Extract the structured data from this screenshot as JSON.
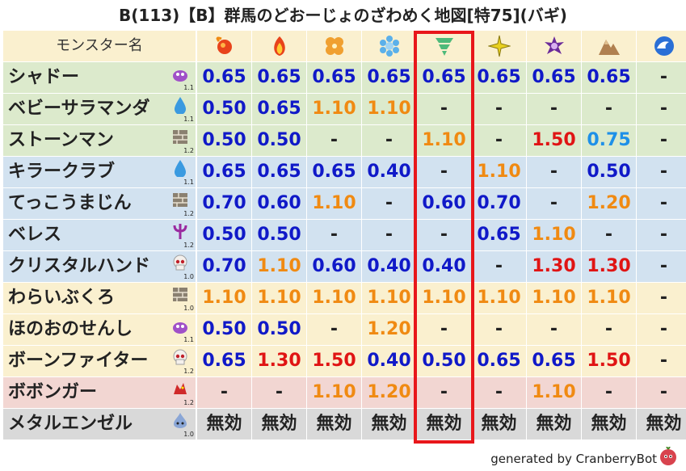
{
  "title": "B(113)【B】群馬のどおーじょのざわめく地図[特75](バギ)",
  "header_label": "モンスター名",
  "footer_text": "generated by CranberryBot",
  "highlight_column": 4,
  "columns": [
    {
      "icon": "fire-icon"
    },
    {
      "icon": "flame-icon"
    },
    {
      "icon": "clover-icon"
    },
    {
      "icon": "ice-icon"
    },
    {
      "icon": "tornado-icon"
    },
    {
      "icon": "lightning-icon"
    },
    {
      "icon": "dark-icon"
    },
    {
      "icon": "mountain-icon"
    },
    {
      "icon": "wave-icon"
    }
  ],
  "colors": {
    "blue": "#1019c8",
    "orange": "#f08a12",
    "red": "#e01414",
    "light": "#1e90e8",
    "dark": "#222222",
    "green_row": "#dceacc",
    "blue_row": "#d2e2f0",
    "yellow_row": "#faf0cf",
    "pink_row": "#f2d6d2",
    "grey_row": "#d9d9d9",
    "header_row": "#faf0cf",
    "highlight_border": "#e8171b"
  },
  "rows": [
    {
      "name": "シャドー",
      "badge": "slime-purple-icon",
      "level": "1.1",
      "bg": "green",
      "cells": [
        [
          "0.65",
          "blue"
        ],
        [
          "0.65",
          "blue"
        ],
        [
          "0.65",
          "blue"
        ],
        [
          "0.65",
          "blue"
        ],
        [
          "0.65",
          "blue"
        ],
        [
          "0.65",
          "blue"
        ],
        [
          "0.65",
          "blue"
        ],
        [
          "0.65",
          "blue"
        ],
        [
          "-",
          "dark"
        ]
      ]
    },
    {
      "name": "ベビーサラマンダ",
      "badge": "water-drop-icon",
      "level": "1.1",
      "bg": "green",
      "cells": [
        [
          "0.50",
          "blue"
        ],
        [
          "0.65",
          "blue"
        ],
        [
          "1.10",
          "orange"
        ],
        [
          "1.10",
          "orange"
        ],
        [
          "-",
          "dark"
        ],
        [
          "-",
          "dark"
        ],
        [
          "-",
          "dark"
        ],
        [
          "-",
          "dark"
        ],
        [
          "-",
          "dark"
        ]
      ]
    },
    {
      "name": "ストーンマン",
      "badge": "brick-icon",
      "level": "1.2",
      "bg": "green",
      "cells": [
        [
          "0.50",
          "blue"
        ],
        [
          "0.50",
          "blue"
        ],
        [
          "-",
          "dark"
        ],
        [
          "-",
          "dark"
        ],
        [
          "1.10",
          "orange"
        ],
        [
          "-",
          "dark"
        ],
        [
          "1.50",
          "red"
        ],
        [
          "0.75",
          "light"
        ],
        [
          "-",
          "dark"
        ]
      ]
    },
    {
      "name": "キラークラブ",
      "badge": "water-drop-icon",
      "level": "1.1",
      "bg": "blue",
      "cells": [
        [
          "0.65",
          "blue"
        ],
        [
          "0.65",
          "blue"
        ],
        [
          "0.65",
          "blue"
        ],
        [
          "0.40",
          "blue"
        ],
        [
          "-",
          "dark"
        ],
        [
          "1.10",
          "orange"
        ],
        [
          "-",
          "dark"
        ],
        [
          "0.50",
          "blue"
        ],
        [
          "-",
          "dark"
        ]
      ]
    },
    {
      "name": "てっこうまじん",
      "badge": "brick-icon",
      "level": "1.2",
      "bg": "blue",
      "cells": [
        [
          "0.70",
          "blue"
        ],
        [
          "0.60",
          "blue"
        ],
        [
          "1.10",
          "orange"
        ],
        [
          "-",
          "dark"
        ],
        [
          "0.60",
          "blue"
        ],
        [
          "0.70",
          "blue"
        ],
        [
          "-",
          "dark"
        ],
        [
          "1.20",
          "orange"
        ],
        [
          "-",
          "dark"
        ]
      ]
    },
    {
      "name": "ベレス",
      "badge": "demon-trident-icon",
      "level": "1.2",
      "bg": "blue",
      "cells": [
        [
          "0.50",
          "blue"
        ],
        [
          "0.50",
          "blue"
        ],
        [
          "-",
          "dark"
        ],
        [
          "-",
          "dark"
        ],
        [
          "-",
          "dark"
        ],
        [
          "0.65",
          "blue"
        ],
        [
          "1.10",
          "orange"
        ],
        [
          "-",
          "dark"
        ],
        [
          "-",
          "dark"
        ]
      ]
    },
    {
      "name": "クリスタルハンド",
      "badge": "skull-icon",
      "level": "1.0",
      "bg": "blue",
      "cells": [
        [
          "0.70",
          "blue"
        ],
        [
          "1.10",
          "orange"
        ],
        [
          "0.60",
          "blue"
        ],
        [
          "0.40",
          "blue"
        ],
        [
          "0.40",
          "blue"
        ],
        [
          "-",
          "dark"
        ],
        [
          "1.30",
          "red"
        ],
        [
          "1.30",
          "red"
        ],
        [
          "-",
          "dark"
        ]
      ]
    },
    {
      "name": "わらいぶくろ",
      "badge": "brick-icon",
      "level": "1.0",
      "bg": "yellow",
      "cells": [
        [
          "1.10",
          "orange"
        ],
        [
          "1.10",
          "orange"
        ],
        [
          "1.10",
          "orange"
        ],
        [
          "1.10",
          "orange"
        ],
        [
          "1.10",
          "orange"
        ],
        [
          "1.10",
          "orange"
        ],
        [
          "1.10",
          "orange"
        ],
        [
          "1.10",
          "orange"
        ],
        [
          "-",
          "dark"
        ]
      ]
    },
    {
      "name": "ほのおのせんし",
      "badge": "slime-purple-icon",
      "level": "1.1",
      "bg": "yellow",
      "cells": [
        [
          "0.50",
          "blue"
        ],
        [
          "0.50",
          "blue"
        ],
        [
          "-",
          "dark"
        ],
        [
          "1.20",
          "orange"
        ],
        [
          "-",
          "dark"
        ],
        [
          "-",
          "dark"
        ],
        [
          "-",
          "dark"
        ],
        [
          "-",
          "dark"
        ],
        [
          "-",
          "dark"
        ]
      ]
    },
    {
      "name": "ボーンファイター",
      "badge": "skull-icon",
      "level": "1.2",
      "bg": "yellow",
      "cells": [
        [
          "0.65",
          "blue"
        ],
        [
          "1.30",
          "red"
        ],
        [
          "1.50",
          "red"
        ],
        [
          "0.40",
          "blue"
        ],
        [
          "0.50",
          "blue"
        ],
        [
          "0.65",
          "blue"
        ],
        [
          "0.65",
          "blue"
        ],
        [
          "1.50",
          "red"
        ],
        [
          "-",
          "dark"
        ]
      ]
    },
    {
      "name": "ボボンガー",
      "badge": "dragon-icon",
      "level": "1.2",
      "bg": "pink",
      "cells": [
        [
          "-",
          "dark"
        ],
        [
          "-",
          "dark"
        ],
        [
          "1.10",
          "orange"
        ],
        [
          "1.20",
          "orange"
        ],
        [
          "-",
          "dark"
        ],
        [
          "-",
          "dark"
        ],
        [
          "1.10",
          "orange"
        ],
        [
          "-",
          "dark"
        ],
        [
          "-",
          "dark"
        ]
      ]
    },
    {
      "name": "メタルエンゼル",
      "badge": "metal-slime-icon",
      "level": "1.0",
      "bg": "grey",
      "cells": [
        [
          "無効",
          "dark"
        ],
        [
          "無効",
          "dark"
        ],
        [
          "無効",
          "dark"
        ],
        [
          "無効",
          "dark"
        ],
        [
          "無効",
          "dark"
        ],
        [
          "無効",
          "dark"
        ],
        [
          "無効",
          "dark"
        ],
        [
          "無効",
          "dark"
        ],
        [
          "無効",
          "dark"
        ]
      ]
    }
  ]
}
